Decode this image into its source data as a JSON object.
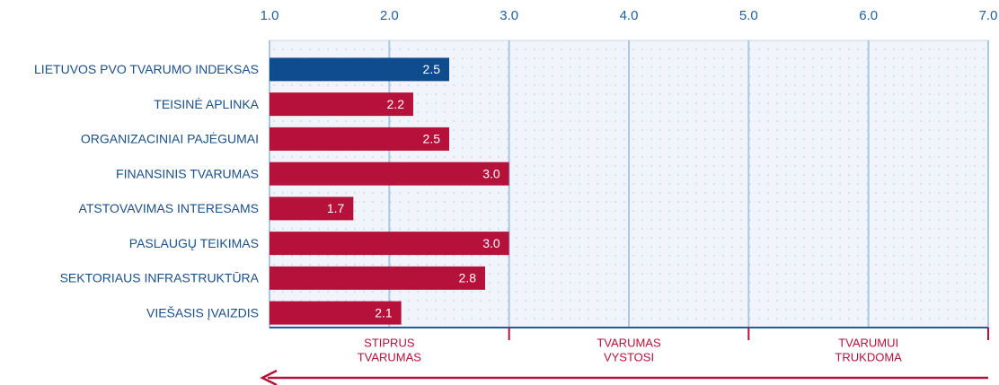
{
  "chart_data": {
    "type": "bar",
    "orientation": "horizontal",
    "categories": [
      "LIETUVOS PVO TVARUMO INDEKSAS",
      "TEISINĖ APLINKA",
      "ORGANIZACINIAI PAJĖGUMAI",
      "FINANSINIS TVARUMAS",
      "ATSTOVAVIMAS INTERESAMS",
      "PASLAUGŲ TEIKIMAS",
      "SEKTORIAUS INFRASTRUKTŪRA",
      "VIEŠASIS ĮVAIZDIS"
    ],
    "values": [
      2.5,
      2.2,
      2.5,
      3.0,
      1.7,
      3.0,
      2.8,
      2.1
    ],
    "value_labels": [
      "2.5",
      "2.2",
      "2.5",
      "3.0",
      "1.7",
      "3.0",
      "2.8",
      "2.1"
    ],
    "colors": [
      "#0f4c8d",
      "#b5113b",
      "#b5113b",
      "#b5113b",
      "#b5113b",
      "#b5113b",
      "#b5113b",
      "#b5113b"
    ],
    "xlim": [
      1,
      7
    ],
    "xticks": [
      {
        "value": 1,
        "label": "1.0"
      },
      {
        "value": 2,
        "label": "2.0"
      },
      {
        "value": 3,
        "label": "3.0"
      },
      {
        "value": 4,
        "label": "4.0"
      },
      {
        "value": 5,
        "label": "5.0"
      },
      {
        "value": 6,
        "label": "6.0"
      },
      {
        "value": 7,
        "label": "7.0"
      }
    ],
    "grid": true,
    "zones": [
      {
        "lines": [
          "STIPRUS",
          "TVARUMAS"
        ],
        "from": 1,
        "to": 3
      },
      {
        "lines": [
          "TVARUMAS",
          "VYSTOSI"
        ],
        "from": 3,
        "to": 5
      },
      {
        "lines": [
          "TVARUMUI",
          "TRUKDOMA"
        ],
        "from": 5,
        "to": 7
      }
    ]
  }
}
